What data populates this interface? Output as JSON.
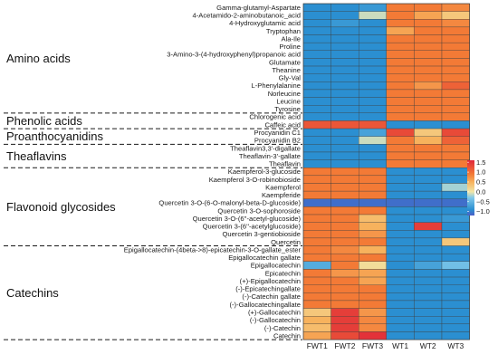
{
  "chart_data": {
    "type": "heatmap",
    "title": "",
    "xlabel": "",
    "ylabel": "",
    "columns": [
      "FWT1",
      "FWT2",
      "FWT3",
      "WT1",
      "WT2",
      "WT3"
    ],
    "rows": [
      "Gamma-glutamyl-Aspartate",
      "4-Acetamido-2-aminobutanoic_acid",
      "4-Hydroxyglutamic acid",
      "Tryptophan",
      "Ala-Ile",
      "Proline",
      "3-Amino-3-(4-hydroxyphenyl)propanoic acid",
      "Glutamate",
      "Theanine",
      "Gly-Val",
      "L-Phenylalanine",
      "Norleucine",
      "Leucine",
      "Tyrosine",
      "Chlorogenic acid",
      "Caffeic acid",
      "Procyanidin C1",
      "Procyanidin B2",
      "Theaflavin3,3'-digallate",
      "Theaflavin-3'-gallate",
      "Theaflavin",
      "Kaempferol-3-glucoside",
      "Kaempferol 3-O-robinobioside",
      "Kaempferol",
      "Kaempferide",
      "Quercetin 3-O-(6-O-malonyl-beta-D-glucoside)",
      "Quercetin 3-O-sophoroside",
      "Quercetin 3-O-(6''-acetyl-glucoside)",
      "Quercetin 3-(6''-acetylglucoside)",
      "Quercetin 3-gentiobioside",
      "Quercetin",
      "Epigallocatechin-(4beta->8)-epicatechin-3-O-gallate_ester",
      "Epigallocatechin gallate",
      "Epigallocatechin",
      "Epicatechin",
      "(+)-Epigallocatechin",
      "(-)-Epicatechingallate",
      "(-)-Catechin gallate",
      "(-)-Gallocatechingallate",
      "(+)-Gallocatechin",
      "(-)-Gallocatechin",
      "(-)-Catechin",
      "Catechin"
    ],
    "values": [
      [
        -0.9,
        -0.9,
        -0.8,
        0.9,
        0.9,
        0.8
      ],
      [
        -0.9,
        -0.9,
        -0.1,
        0.9,
        0.6,
        0.3
      ],
      [
        -0.9,
        -0.8,
        -0.9,
        0.9,
        0.9,
        0.8
      ],
      [
        -0.9,
        -0.9,
        -0.9,
        0.6,
        0.9,
        0.9
      ],
      [
        -0.9,
        -0.9,
        -0.9,
        0.9,
        0.9,
        0.9
      ],
      [
        -0.9,
        -0.9,
        -0.9,
        0.9,
        0.9,
        0.9
      ],
      [
        -0.9,
        -0.9,
        -0.9,
        0.9,
        0.9,
        0.9
      ],
      [
        -0.9,
        -0.9,
        -0.9,
        0.9,
        0.9,
        0.9
      ],
      [
        -0.9,
        -0.9,
        -0.9,
        0.9,
        0.9,
        0.9
      ],
      [
        -0.9,
        -0.9,
        -0.9,
        0.9,
        0.9,
        0.9
      ],
      [
        -0.9,
        -0.9,
        -0.9,
        0.9,
        0.7,
        1.1
      ],
      [
        -0.9,
        -0.9,
        -0.9,
        0.9,
        0.9,
        0.9
      ],
      [
        -0.9,
        -0.9,
        -0.9,
        0.9,
        0.9,
        0.9
      ],
      [
        -0.9,
        -0.9,
        -0.9,
        0.9,
        0.9,
        0.9
      ],
      [
        -0.9,
        -0.9,
        -0.9,
        0.9,
        0.9,
        0.9
      ],
      [
        1.2,
        1.2,
        1.2,
        -0.9,
        -0.9,
        -0.9
      ],
      [
        -0.9,
        -0.9,
        -0.7,
        1.3,
        0.3,
        1.3
      ],
      [
        -0.9,
        -0.9,
        -0.1,
        0.9,
        0.5,
        1.1
      ],
      [
        -0.9,
        -0.9,
        -0.9,
        0.9,
        0.9,
        0.9
      ],
      [
        -0.9,
        -0.9,
        -0.9,
        0.9,
        0.9,
        0.9
      ],
      [
        -0.9,
        -0.9,
        -0.9,
        0.9,
        0.9,
        0.9
      ],
      [
        0.9,
        0.9,
        0.9,
        -0.9,
        -0.9,
        -0.9
      ],
      [
        0.9,
        0.9,
        0.9,
        -0.9,
        -0.9,
        -0.9
      ],
      [
        0.9,
        0.9,
        0.9,
        -0.9,
        -0.9,
        -0.2
      ],
      [
        0.9,
        0.9,
        0.9,
        -0.9,
        -0.9,
        -0.9
      ],
      [
        -1.1,
        -1.1,
        -1.1,
        -1.1,
        -1.1,
        -1.1
      ],
      [
        0.9,
        0.9,
        0.9,
        -0.9,
        -0.9,
        -0.9
      ],
      [
        0.9,
        0.9,
        0.4,
        -0.9,
        -0.9,
        -0.8
      ],
      [
        0.9,
        0.9,
        0.5,
        -0.9,
        1.4,
        -0.9
      ],
      [
        0.9,
        0.9,
        0.7,
        -0.9,
        -0.9,
        -0.9
      ],
      [
        0.9,
        0.9,
        0.9,
        -0.9,
        -0.9,
        0.3
      ],
      [
        0.9,
        0.8,
        0.5,
        -0.9,
        -0.9,
        -0.9
      ],
      [
        0.9,
        0.9,
        0.9,
        -0.9,
        -0.9,
        -0.9
      ],
      [
        -0.6,
        0.9,
        0.1,
        -0.9,
        -0.7,
        -0.4
      ],
      [
        0.9,
        0.7,
        0.6,
        -0.9,
        -0.9,
        -0.9
      ],
      [
        0.9,
        0.9,
        0.6,
        -0.9,
        -0.9,
        -0.9
      ],
      [
        0.9,
        0.9,
        0.9,
        -0.9,
        -0.9,
        -0.9
      ],
      [
        0.9,
        0.9,
        0.9,
        -0.9,
        -0.9,
        -0.9
      ],
      [
        0.9,
        0.9,
        0.9,
        -0.9,
        -0.9,
        -0.9
      ],
      [
        0.3,
        1.4,
        0.7,
        -0.9,
        -0.9,
        -0.9
      ],
      [
        0.5,
        1.4,
        0.8,
        -0.9,
        -0.9,
        -0.9
      ],
      [
        0.4,
        1.4,
        0.8,
        -0.9,
        -0.9,
        -0.9
      ],
      [
        0.6,
        1.3,
        1.5,
        -0.9,
        -0.9,
        -0.9
      ]
    ],
    "groups": [
      {
        "name": "Amino acids",
        "start": 0,
        "end": 13
      },
      {
        "name": "Phenolic acids",
        "start": 14,
        "end": 15
      },
      {
        "name": "Proanthocyanidins",
        "start": 16,
        "end": 17
      },
      {
        "name": "Theaflavins",
        "start": 18,
        "end": 20
      },
      {
        "name": "Flavonoid glycosides",
        "start": 21,
        "end": 30
      },
      {
        "name": "Catechins",
        "start": 31,
        "end": 42
      }
    ],
    "legend": {
      "range": [
        -1.2,
        1.6
      ],
      "ticks": [
        1.5,
        1.0,
        0.5,
        0.0,
        -0.5,
        -1.0
      ],
      "tick_labels": [
        "1.5",
        "1.0",
        "0.5",
        "0.0",
        "−0.5",
        "−1.0"
      ],
      "placement": "right"
    },
    "color_stops": [
      {
        "v": -1.2,
        "c": "#4b5ec7"
      },
      {
        "v": -0.9,
        "c": "#2b8fd1"
      },
      {
        "v": -0.3,
        "c": "#7fc8ea"
      },
      {
        "v": 0.0,
        "c": "#f1e6a8"
      },
      {
        "v": 0.5,
        "c": "#f7b25d"
      },
      {
        "v": 0.9,
        "c": "#f37a36"
      },
      {
        "v": 1.6,
        "c": "#e0263a"
      }
    ]
  }
}
